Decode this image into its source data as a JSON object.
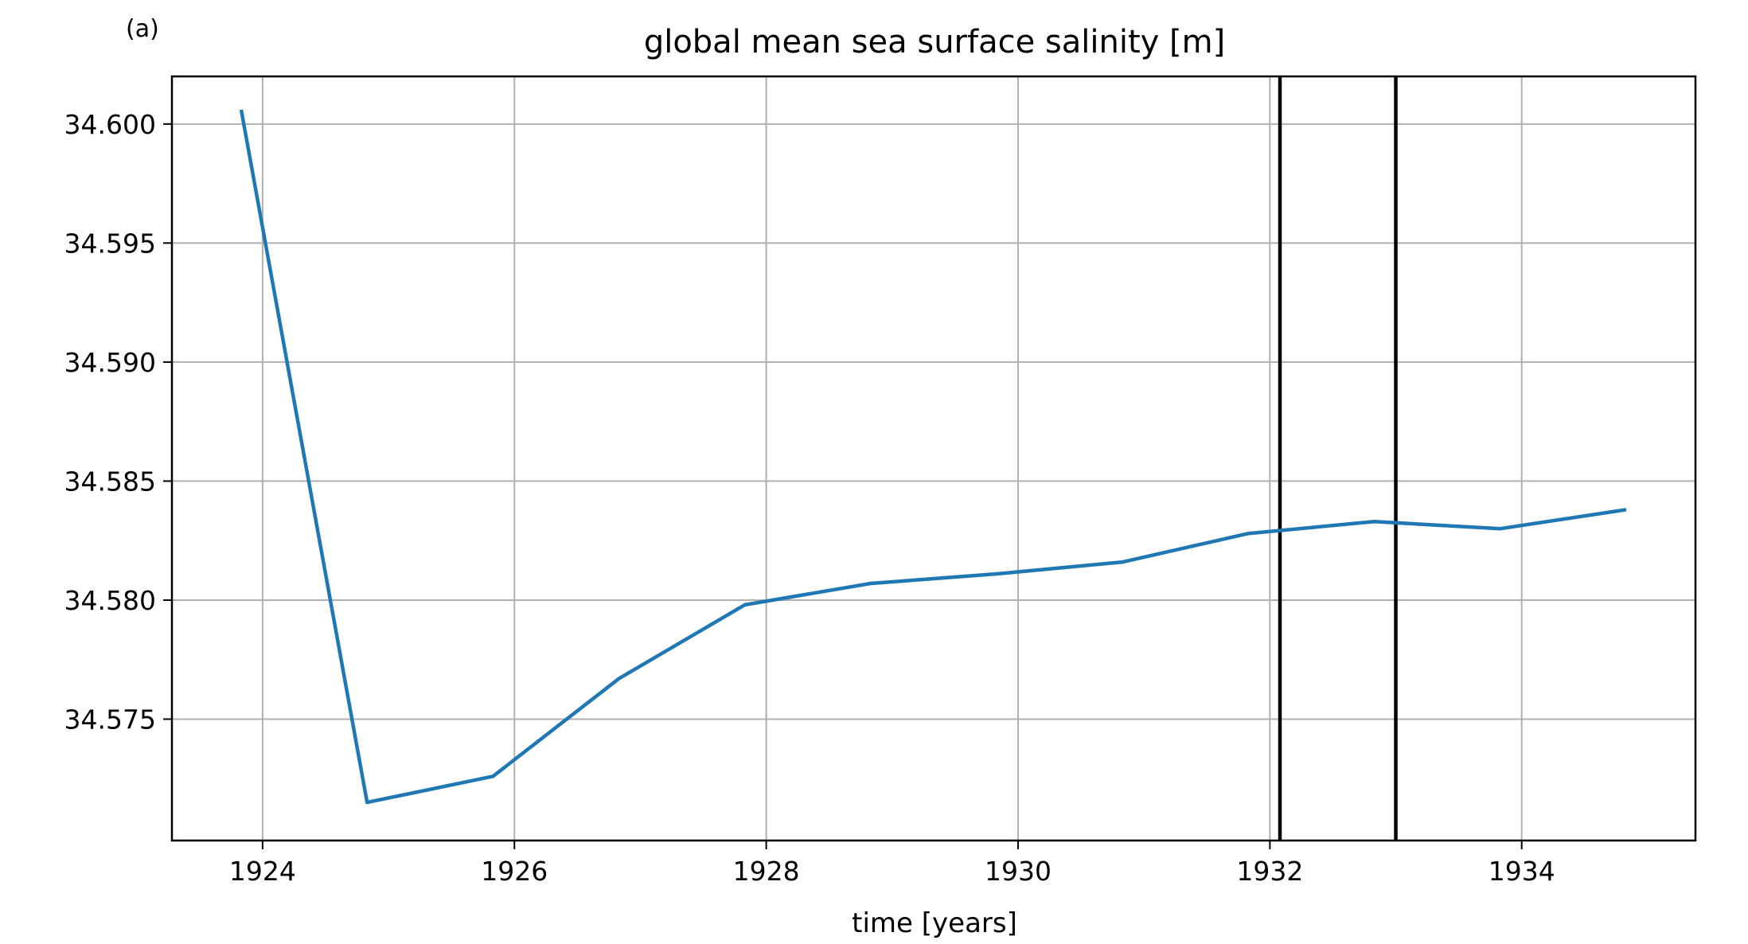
{
  "chart_data": {
    "type": "line",
    "panel_label": "(a)",
    "title": "global mean sea surface salinity [m]",
    "xlabel": "time [years]",
    "ylabel": "",
    "xlim": [
      1923.28,
      1935.38
    ],
    "ylim": [
      34.5699,
      34.602
    ],
    "grid": true,
    "legend": "none",
    "x_ticks": [
      1924,
      1926,
      1928,
      1930,
      1932,
      1934
    ],
    "x_tick_labels": [
      "1924",
      "1926",
      "1928",
      "1930",
      "1932",
      "1934"
    ],
    "y_ticks": [
      34.575,
      34.58,
      34.585,
      34.59,
      34.595,
      34.6
    ],
    "y_tick_labels": [
      "34.575",
      "34.580",
      "34.585",
      "34.590",
      "34.595",
      "34.600"
    ],
    "series": [
      {
        "color": "#1f77b4",
        "x": [
          1923.83,
          1924.83,
          1925.83,
          1926.83,
          1927.83,
          1928.83,
          1929.83,
          1930.83,
          1931.83,
          1932.83,
          1933.83,
          1934.83
        ],
        "y": [
          34.6006,
          34.5715,
          34.5726,
          34.5767,
          34.5798,
          34.5807,
          34.5811,
          34.5816,
          34.5828,
          34.5833,
          34.583,
          34.5838
        ]
      }
    ],
    "vertical_lines": [
      {
        "x": 1932.08,
        "color": "#000000"
      },
      {
        "x": 1933.0,
        "color": "#000000"
      }
    ],
    "colors": {
      "grid": "#b0b0b0",
      "axes": "#000000",
      "line": "#1f77b4"
    }
  }
}
